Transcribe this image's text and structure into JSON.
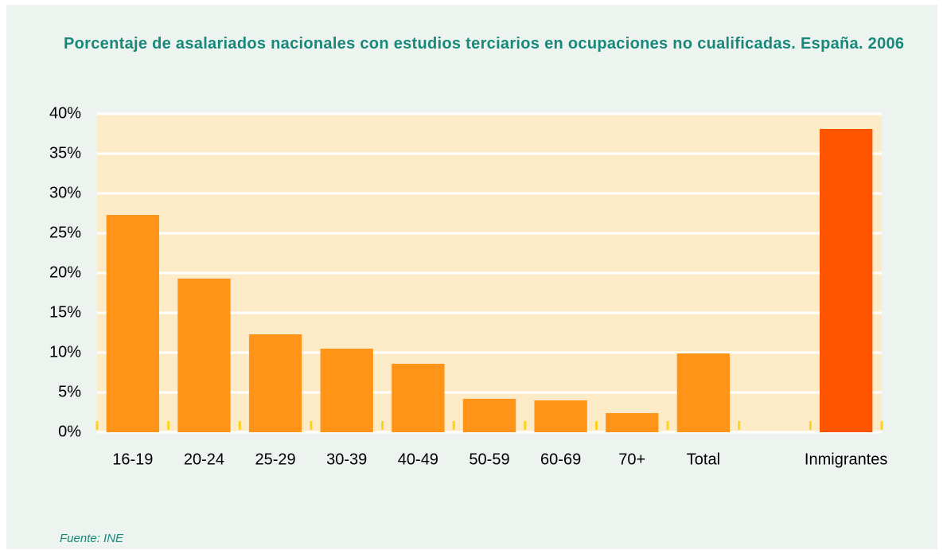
{
  "chart_data": {
    "type": "bar",
    "title": "Porcentaje de asalariados nacionales con estudios terciarios en ocupaciones no cualificadas. España. 2006",
    "categories": [
      "16-19",
      "20-24",
      "25-29",
      "30-39",
      "40-49",
      "50-59",
      "60-69",
      "70+",
      "Total",
      null,
      "Inmigrantes"
    ],
    "values": [
      27.3,
      19.3,
      12.3,
      10.5,
      8.6,
      4.2,
      4.0,
      2.4,
      9.9,
      null,
      38.1
    ],
    "colors": [
      "#ff9418",
      "#ff9418",
      "#ff9418",
      "#ff9418",
      "#ff9418",
      "#ff9418",
      "#ff9418",
      "#ff9418",
      "#ff9418",
      "#ff9418",
      "#ff5500"
    ],
    "ylim": [
      0,
      40
    ],
    "yticks": [
      {
        "value": 0,
        "label": "0%"
      },
      {
        "value": 5,
        "label": "5%"
      },
      {
        "value": 10,
        "label": "10%"
      },
      {
        "value": 15,
        "label": "15%"
      },
      {
        "value": 20,
        "label": "20%"
      },
      {
        "value": 25,
        "label": "25%"
      },
      {
        "value": 30,
        "label": "30%"
      },
      {
        "value": 35,
        "label": "35%"
      },
      {
        "value": 40,
        "label": "40%"
      }
    ],
    "grid": true,
    "source": "Fuente:  INE"
  }
}
